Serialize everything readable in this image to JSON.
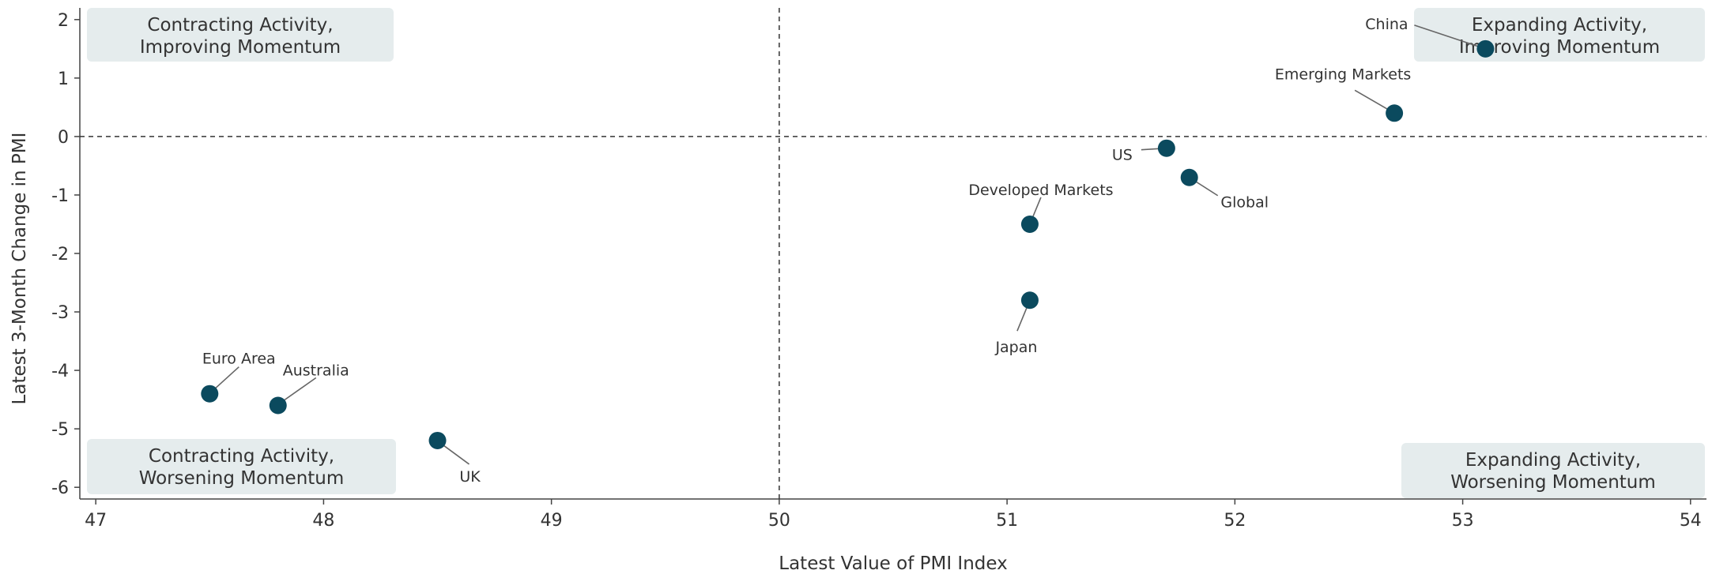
{
  "chart_data": {
    "type": "scatter",
    "xlabel": "Latest Value of PMI Index",
    "ylabel": "Latest 3-Month Change in PMI",
    "xlim": [
      46.93,
      54.07
    ],
    "ylim": [
      -6.2,
      2.2
    ],
    "xticks": [
      47,
      48,
      49,
      50,
      51,
      52,
      53,
      54
    ],
    "yticks": [
      2,
      1,
      0,
      -1,
      -2,
      -3,
      -4,
      -5,
      -6
    ],
    "reference_lines": {
      "x": 50,
      "y": 0,
      "style": "dashed"
    },
    "marker_color": "#0b4a5e",
    "points": [
      {
        "label": "China",
        "x": 53.1,
        "y": 1.5
      },
      {
        "label": "Emerging Markets",
        "x": 52.7,
        "y": 0.4
      },
      {
        "label": "US",
        "x": 51.7,
        "y": -0.2
      },
      {
        "label": "Global",
        "x": 51.8,
        "y": -0.7
      },
      {
        "label": "Developed Markets",
        "x": 51.1,
        "y": -1.5
      },
      {
        "label": "Japan",
        "x": 51.1,
        "y": -2.8
      },
      {
        "label": "Euro Area",
        "x": 47.5,
        "y": -4.4
      },
      {
        "label": "Australia",
        "x": 47.8,
        "y": -4.6
      },
      {
        "label": "UK",
        "x": 48.5,
        "y": -5.2
      }
    ],
    "quadrants": [
      {
        "position": "top-left",
        "line1": "Contracting Activity,",
        "line2": "Improving Momentum"
      },
      {
        "position": "top-right",
        "line1": "Expanding Activity,",
        "line2": "Improving Momentum"
      },
      {
        "position": "bottom-left",
        "line1": "Contracting Activity,",
        "line2": "Worsening Momentum"
      },
      {
        "position": "bottom-right",
        "line1": "Expanding Activity,",
        "line2": "Worsening Momentum"
      }
    ]
  }
}
